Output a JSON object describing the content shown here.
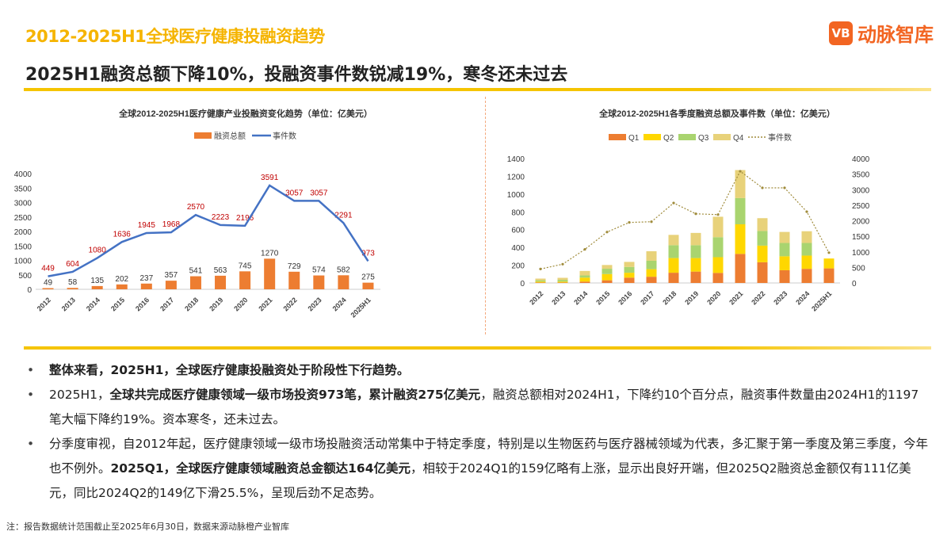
{
  "header": {
    "title": "2012-2025H1全球医疗健康投融资趋势",
    "subtitle": "2025H1融资总额下降10%，投融资事件数锐减19%，寒冬还未过去",
    "logo_text": "动脉智库",
    "logo_mark": "VB"
  },
  "colors": {
    "accent": "#f5b400",
    "bar": "#ed7d31",
    "line": "#4472c4",
    "label_red": "#c00000",
    "q1": "#ed7d31",
    "q2": "#ffd700",
    "q3": "#a9d46f",
    "q4": "#e8d27a",
    "dotted": "#a08c3c"
  },
  "chart_data": [
    {
      "type": "bar+line",
      "title": "全球2012-2025H1医疗健康产业投融资变化趋势（单位：亿美元）",
      "categories": [
        "2012",
        "2013",
        "2014",
        "2015",
        "2016",
        "2017",
        "2018",
        "2019",
        "2020",
        "2021",
        "2022",
        "2023",
        "2024",
        "2025H1"
      ],
      "yticks": [
        "0",
        "500",
        "1000",
        "1500",
        "2000",
        "2500",
        "3000",
        "3500",
        "4000"
      ],
      "ylim": [
        0,
        4000
      ],
      "series": [
        {
          "name": "融资总额",
          "type": "bar",
          "values": [
            49,
            58,
            135,
            202,
            237,
            357,
            541,
            563,
            745,
            1270,
            729,
            574,
            582,
            275
          ]
        },
        {
          "name": "事件数",
          "type": "line",
          "values": [
            449,
            604,
            1080,
            1636,
            1945,
            1968,
            2570,
            2223,
            2196,
            3591,
            3057,
            3057,
            2291,
            973
          ]
        }
      ],
      "legend": "top"
    },
    {
      "type": "stacked-bar+line",
      "title": "全球2012-2025H1各季度融资总额及事件数（单位：亿美元）",
      "categories": [
        "2012",
        "2013",
        "2014",
        "2015",
        "2016",
        "2017",
        "2018",
        "2019",
        "2020",
        "2021",
        "2022",
        "2023",
        "2024",
        "2025H1"
      ],
      "yticks_left": [
        "0",
        "200",
        "400",
        "600",
        "800",
        "1000",
        "1200",
        "1400"
      ],
      "ylim_left": [
        0,
        1400
      ],
      "yticks_right": [
        "0",
        "500",
        "1000",
        "1500",
        "2000",
        "2500",
        "3000",
        "3500",
        "4000"
      ],
      "ylim_right": [
        0,
        4000
      ],
      "series": [
        {
          "name": "Q1",
          "values": [
            5,
            5,
            15,
            30,
            60,
            70,
            115,
            128,
            113,
            327,
            233,
            143,
            159,
            164
          ]
        },
        {
          "name": "Q2",
          "values": [
            10,
            10,
            45,
            70,
            55,
            85,
            165,
            152,
            177,
            333,
            187,
            157,
            149,
            111
          ]
        },
        {
          "name": "Q3",
          "values": [
            15,
            20,
            25,
            60,
            65,
            95,
            145,
            145,
            225,
            295,
            165,
            150,
            142,
            0
          ]
        },
        {
          "name": "Q4",
          "values": [
            19,
            23,
            50,
            42,
            57,
            107,
            116,
            138,
            230,
            315,
            144,
            124,
            132,
            0
          ]
        },
        {
          "name": "事件数",
          "type": "line",
          "axis": "right",
          "values": [
            449,
            604,
            1080,
            1636,
            1945,
            1968,
            2570,
            2223,
            2196,
            3591,
            3057,
            3057,
            2291,
            973
          ]
        }
      ],
      "legend": "top"
    }
  ],
  "bullets": [
    {
      "parts": [
        {
          "b": true,
          "t": "整体来看，2025H1，全球医疗健康投融资处于阶段性下行趋势。"
        }
      ]
    },
    {
      "parts": [
        {
          "b": false,
          "t": "2025H1，"
        },
        {
          "b": true,
          "t": "全球共完成医疗健康领域一级市场投资973笔，累计融资275亿美元"
        },
        {
          "b": false,
          "t": "，融资总额相对2024H1，下降约10个百分点，融资事件数量由2024H1的1197笔大幅下降约19%。资本寒冬，还未过去。"
        }
      ]
    },
    {
      "parts": [
        {
          "b": false,
          "t": "分季度审视，自2012年起，医疗健康领域一级市场投融资活动常集中于特定季度，特别是以生物医药与医疗器械领域为代表，多汇聚于第一季度及第三季度，今年也不例外。"
        },
        {
          "b": true,
          "t": "2025Q1，全球医疗健康领域融资总金额达164亿美元"
        },
        {
          "b": false,
          "t": "，相较于2024Q1的159亿略有上涨，显示出良好开端，但2025Q2融资总金额仅有111亿美元，同比2024Q2的149亿下滑25.5%，呈现后劲不足态势。"
        }
      ]
    }
  ],
  "note": "注：报告数据统计范围截止至2025年6月30日，数据来源动脉橙产业智库"
}
